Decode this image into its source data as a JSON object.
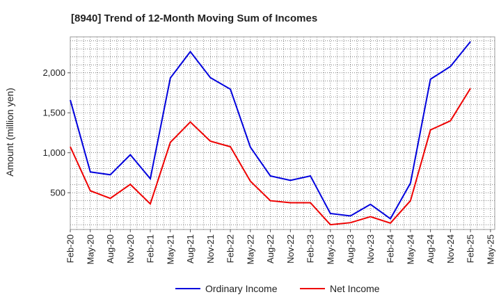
{
  "chart_data": {
    "type": "line",
    "title": "[8940]  Trend of 12-Month Moving Sum of Incomes",
    "xlabel": "",
    "ylabel": "Amount (million yen)",
    "ylim": [
      40,
      2450
    ],
    "yticks": [
      500,
      1000,
      1500,
      2000
    ],
    "ytick_labels": [
      "500",
      "1,000",
      "1,500",
      "2,000"
    ],
    "x": [
      "Feb-20",
      "May-20",
      "Aug-20",
      "Nov-20",
      "Feb-21",
      "May-21",
      "Aug-21",
      "Nov-21",
      "Feb-22",
      "May-22",
      "Aug-22",
      "Nov-22",
      "Feb-23",
      "May-23",
      "Aug-23",
      "Nov-23",
      "Feb-24",
      "May-24",
      "Aug-24",
      "Nov-24",
      "Feb-25"
    ],
    "xtick_labels": [
      "Feb-20",
      "May-20",
      "Aug-20",
      "Nov-20",
      "Feb-21",
      "May-21",
      "Aug-21",
      "Nov-21",
      "Feb-22",
      "May-22",
      "Aug-22",
      "Nov-22",
      "Feb-23",
      "May-23",
      "Aug-23",
      "Nov-23",
      "Feb-24",
      "May-24",
      "Aug-24",
      "Nov-24",
      "Feb-25",
      "May-25"
    ],
    "series": [
      {
        "name": "Ordinary Income",
        "color": "#0000dd",
        "values": [
          1660,
          760,
          725,
          975,
          675,
          1935,
          2265,
          1940,
          1795,
          1070,
          710,
          655,
          710,
          240,
          210,
          355,
          175,
          620,
          1920,
          2080,
          2390
        ]
      },
      {
        "name": "Net Income",
        "color": "#ee0000",
        "values": [
          1075,
          525,
          430,
          605,
          360,
          1130,
          1385,
          1145,
          1075,
          645,
          400,
          375,
          375,
          100,
          125,
          200,
          120,
          400,
          1285,
          1400,
          1805
        ]
      }
    ],
    "grid": true,
    "legend_position": "bottom-center"
  }
}
